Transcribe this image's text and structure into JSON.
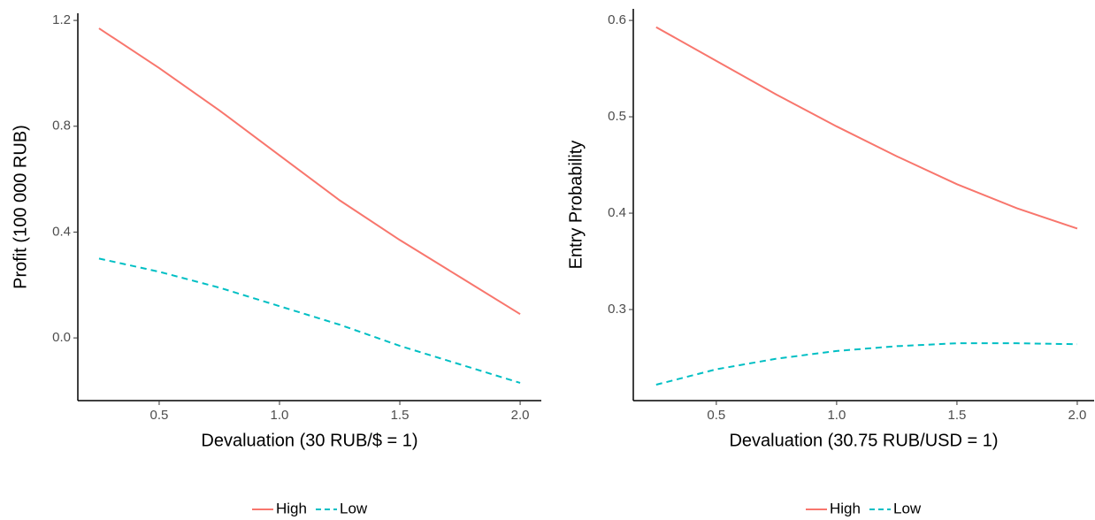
{
  "chart_data": [
    {
      "type": "line",
      "x_label": "Devaluation (30 RUB/$ = 1)",
      "y_label": "Profit (100 000 RUB)",
      "x": [
        0.25,
        0.5,
        0.75,
        1.0,
        1.25,
        1.5,
        1.75,
        2.0
      ],
      "series": [
        {
          "name": "High",
          "color": "#f8766d",
          "linestyle": "solid",
          "values": [
            1.17,
            1.02,
            0.86,
            0.69,
            0.52,
            0.37,
            0.23,
            0.09
          ]
        },
        {
          "name": "Low",
          "color": "#00bfc4",
          "linestyle": "dashed",
          "values": [
            0.3,
            0.25,
            0.19,
            0.12,
            0.05,
            -0.03,
            -0.1,
            -0.17
          ]
        }
      ],
      "xlim": [
        0.162,
        2.088
      ],
      "ylim": [
        -0.237,
        1.227
      ],
      "xticks": [
        0.5,
        {
          "value": 1.0,
          "label": "1.0"
        },
        1.5,
        {
          "value": 2.0,
          "label": "2.0"
        }
      ],
      "yticks": [
        {
          "value": 0.0,
          "label": "0.0"
        },
        0.4,
        0.8,
        1.2
      ],
      "legend": "bottom"
    },
    {
      "type": "line",
      "x_label": "Devaluation (30.75 RUB/USD = 1)",
      "y_label": "Entry Probability",
      "x": [
        0.25,
        0.5,
        0.75,
        1.0,
        1.25,
        1.5,
        1.75,
        2.0
      ],
      "series": [
        {
          "name": "High",
          "color": "#f8766d",
          "linestyle": "solid",
          "values": [
            0.593,
            0.558,
            0.523,
            0.49,
            0.459,
            0.43,
            0.405,
            0.384
          ]
        },
        {
          "name": "Low",
          "color": "#00bfc4",
          "linestyle": "dashed",
          "values": [
            0.222,
            0.238,
            0.249,
            0.257,
            0.262,
            0.265,
            0.265,
            0.264
          ]
        }
      ],
      "xlim": [
        0.155,
        2.07
      ],
      "ylim": [
        0.2055,
        0.612
      ],
      "xticks": [
        0.5,
        {
          "value": 1.0,
          "label": "1.0"
        },
        1.5,
        {
          "value": 2.0,
          "label": "2.0"
        }
      ],
      "yticks": [
        0.3,
        0.4,
        0.5,
        0.6
      ],
      "legend": "bottom"
    }
  ]
}
